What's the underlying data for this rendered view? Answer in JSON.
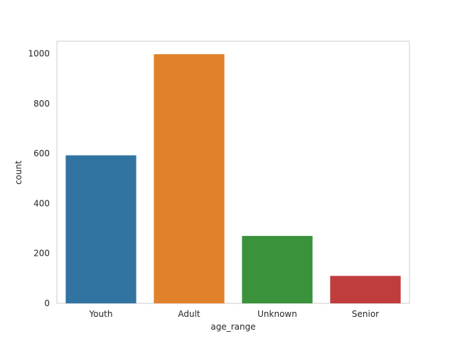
{
  "chart_data": {
    "type": "bar",
    "xlabel": "age_range",
    "ylabel": "count",
    "categories": [
      "Youth",
      "Adult",
      "Unknown",
      "Senior"
    ],
    "values": [
      593,
      998,
      270,
      110
    ],
    "colors": [
      "#3274a1",
      "#e1812c",
      "#3a923a",
      "#c03d3e"
    ],
    "ylim": [
      0,
      1050
    ],
    "yticks": [
      0,
      200,
      400,
      600,
      800,
      1000
    ],
    "grid": false,
    "legend": "none"
  }
}
